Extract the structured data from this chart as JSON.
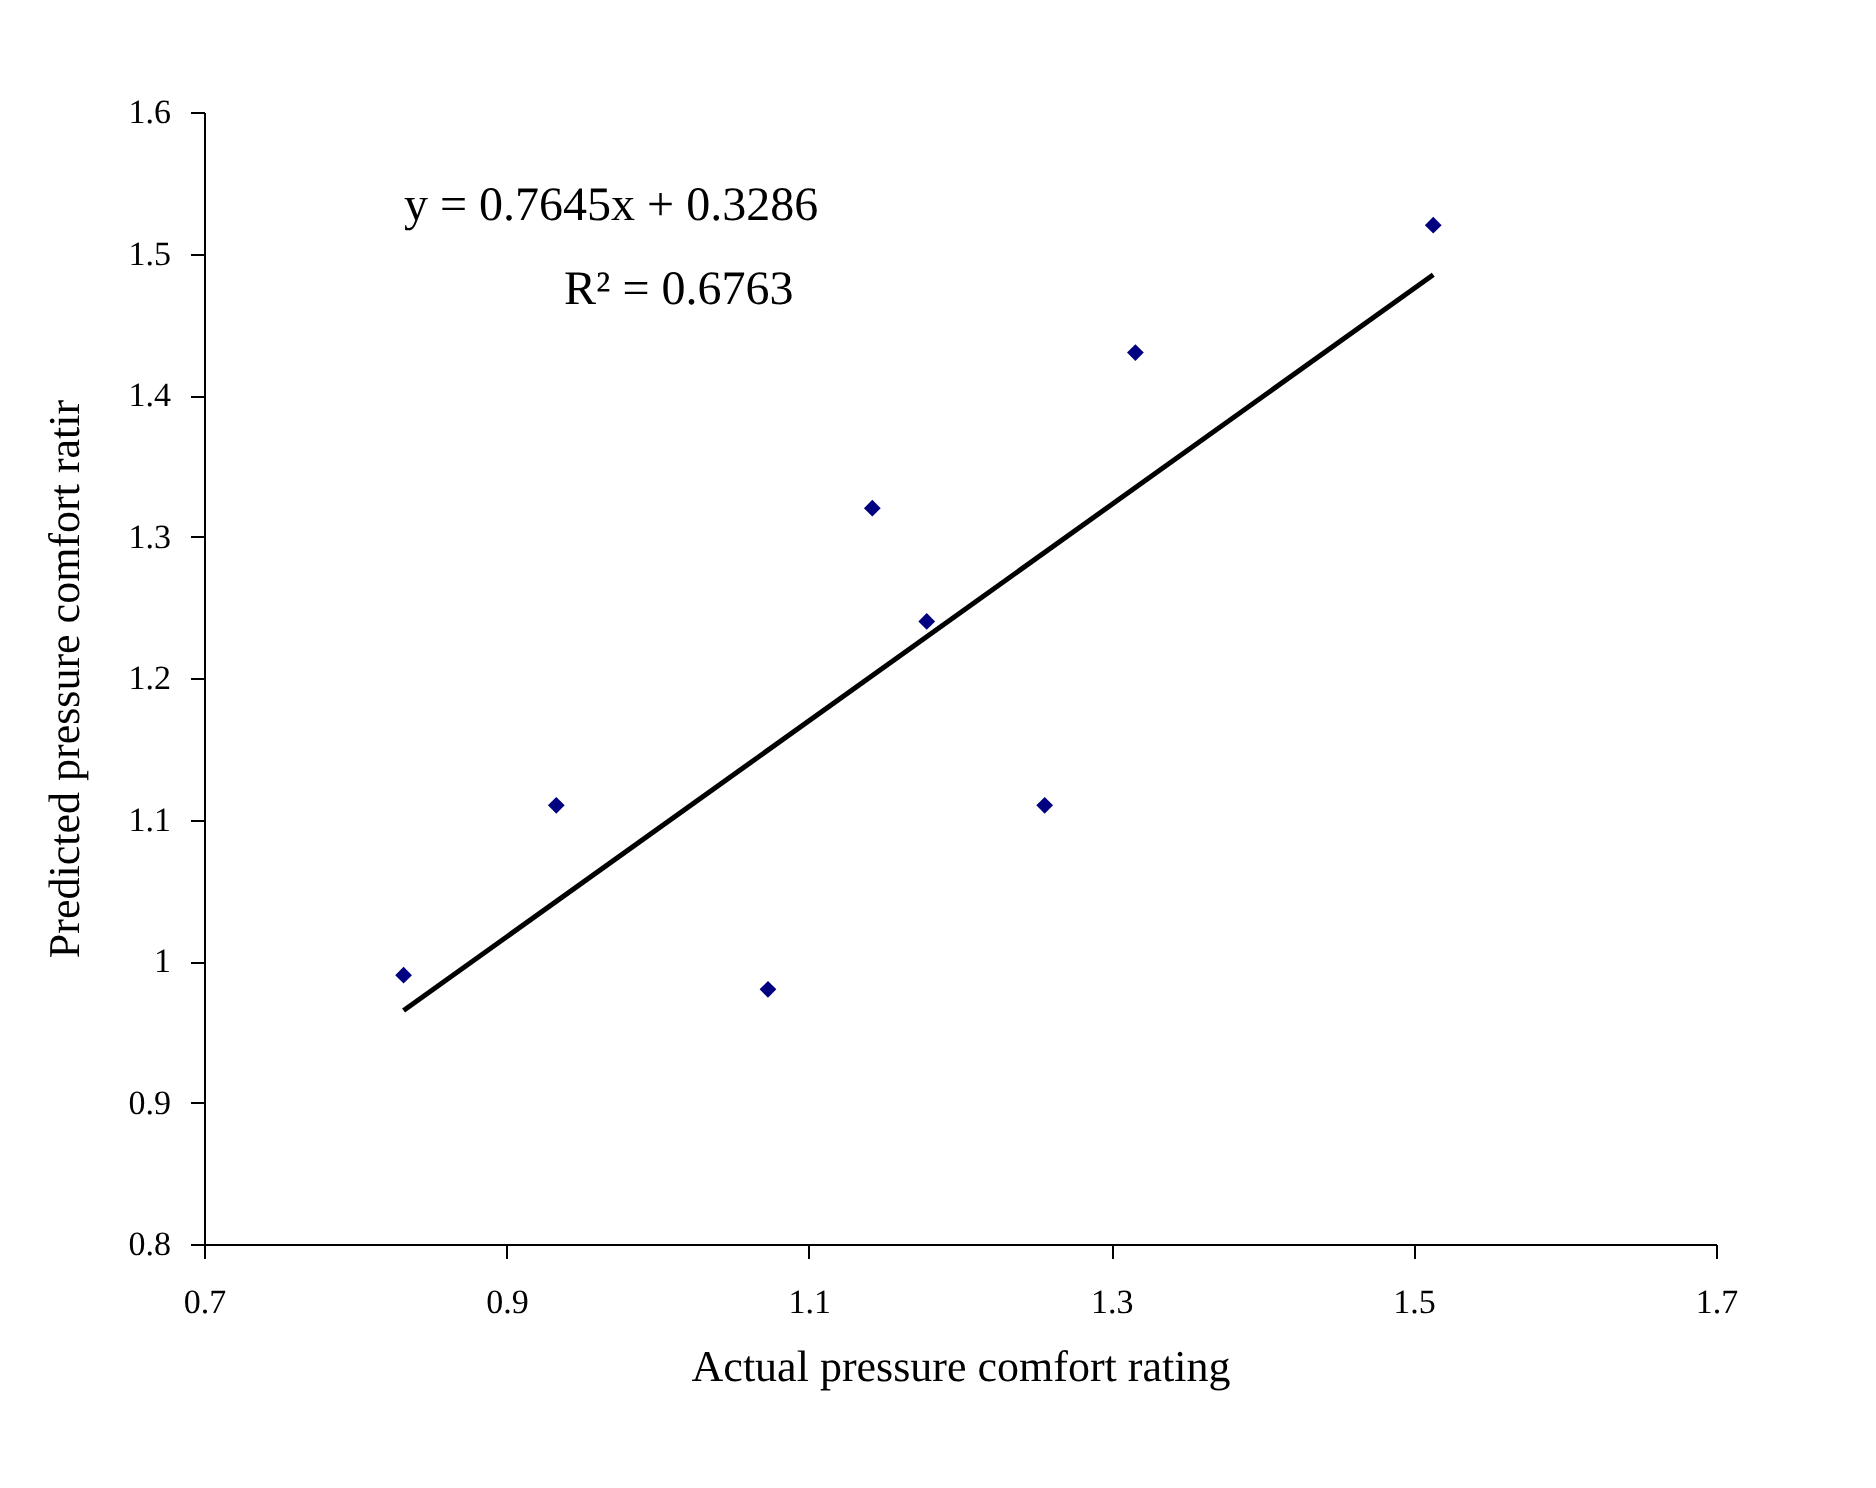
{
  "chart_data": {
    "type": "scatter",
    "xlabel": "Actual pressure comfort rating",
    "ylabel": "Predicted pressure comfort ratir",
    "series": [
      {
        "type": "scatter",
        "color": "#000080",
        "marker": "diamond",
        "x": [
          0.832,
          0.933,
          1.073,
          1.142,
          1.178,
          1.256,
          1.316,
          1.513
        ],
        "values": [
          0.99,
          1.11,
          0.98,
          1.32,
          1.24,
          1.11,
          1.43,
          1.52
        ]
      },
      {
        "type": "line",
        "color": "#000000",
        "line_style": "solid",
        "x": [
          0.832,
          1.513
        ],
        "values": [
          0.965,
          1.485
        ]
      }
    ],
    "annotations": [
      "y = 0.7645x + 0.3286",
      "R² = 0.6763"
    ],
    "xlim": [
      0.7,
      1.7
    ],
    "xticks": [
      0.7,
      0.9,
      1.1,
      1.3,
      1.5,
      1.7
    ],
    "ylim": [
      0.8,
      1.6
    ],
    "yticks": [
      0.8,
      0.9,
      1,
      1.1,
      1.2,
      1.3,
      1.4,
      1.5,
      1.6
    ],
    "grid": false
  }
}
